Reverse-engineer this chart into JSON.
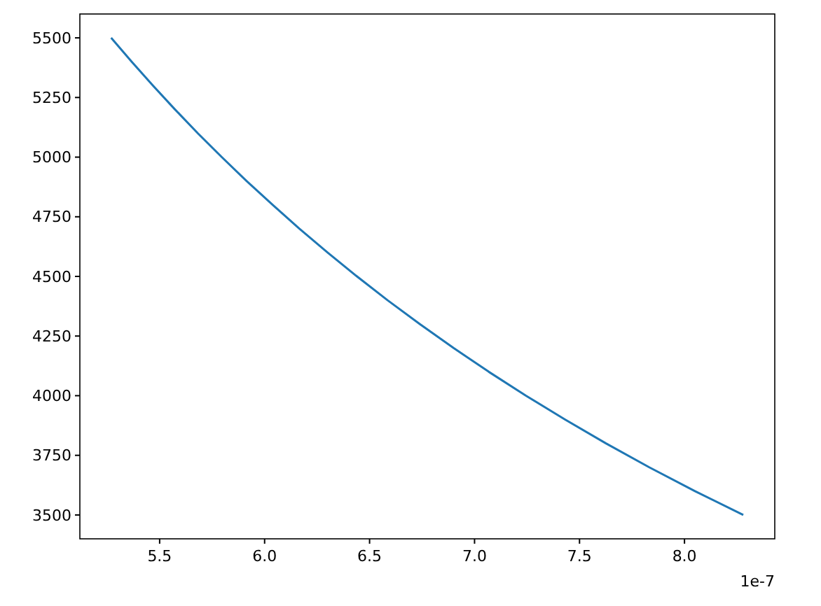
{
  "chart_data": {
    "type": "line",
    "x": [
      5.269,
      5.367,
      5.468,
      5.573,
      5.682,
      5.796,
      5.914,
      6.038,
      6.166,
      6.3,
      6.44,
      6.586,
      6.74,
      6.9,
      7.068,
      7.245,
      7.431,
      7.626,
      7.832,
      8.05,
      8.28
    ],
    "series": [
      {
        "color": "#1f77b4",
        "values": [
          5500,
          5400,
          5300,
          5200,
          5100,
          5000,
          4900,
          4800,
          4700,
          4600,
          4500,
          4400,
          4300,
          4200,
          4100,
          4000,
          3900,
          3800,
          3700,
          3600,
          3500
        ]
      }
    ],
    "xlim": [
      5.12,
      8.43
    ],
    "xticks": [
      {
        "value": 5.5,
        "label": "5.5"
      },
      {
        "value": 6,
        "label": "6.0"
      },
      {
        "value": 6.5,
        "label": "6.5"
      },
      {
        "value": 7,
        "label": "7.0"
      },
      {
        "value": 7.5,
        "label": "7.5"
      },
      {
        "value": 8,
        "label": "8.0"
      }
    ],
    "ylim": [
      3400,
      5600
    ],
    "yticks": [
      3500,
      3750,
      4000,
      4250,
      4500,
      4750,
      5000,
      5250,
      5500
    ],
    "annotations": [
      "1e-7"
    ],
    "grid": false,
    "marker": "none",
    "line_style": "solid"
  }
}
